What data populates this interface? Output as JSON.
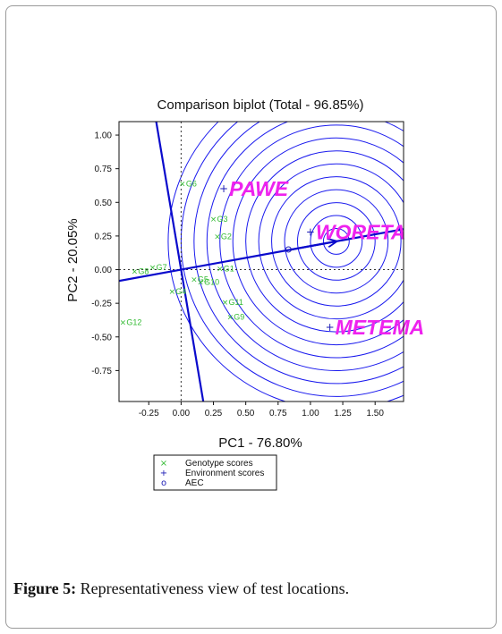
{
  "figure": {
    "caption_label": "Figure 5:",
    "caption_text": "Representativeness view of test locations."
  },
  "chart_data": {
    "type": "scatter",
    "title": "Comparison biplot (Total - 96.85%)",
    "xlabel": "PC1 - 76.80%",
    "ylabel": "PC2 - 20.05%",
    "xlim": [
      -0.48,
      1.72
    ],
    "ylim": [
      -0.98,
      1.1
    ],
    "xticks": [
      "-0.25",
      "0.00",
      "0.25",
      "0.50",
      "0.75",
      "1.00",
      "1.25",
      "1.50"
    ],
    "yticks": [
      "1.00",
      "0.75",
      "0.50",
      "0.25",
      "0.00",
      "-0.25",
      "-0.50",
      "-0.75"
    ],
    "colors": {
      "genotype": "#33bb33",
      "environment": "#1a1ab4",
      "axes_lines": "#0a0acc",
      "circles": "#1a1aee",
      "environment_label": "#ee22ee"
    },
    "genotypes": [
      {
        "label": "G1",
        "x": 0.3,
        "y": 0.01
      },
      {
        "label": "G2",
        "x": 0.28,
        "y": 0.25
      },
      {
        "label": "G3",
        "x": 0.25,
        "y": 0.38
      },
      {
        "label": "G4",
        "x": -0.07,
        "y": -0.16
      },
      {
        "label": "G5",
        "x": 0.1,
        "y": -0.07
      },
      {
        "label": "G6",
        "x": 0.01,
        "y": 0.64
      },
      {
        "label": "G7",
        "x": -0.22,
        "y": 0.02
      },
      {
        "label": "G8",
        "x": -0.36,
        "y": -0.01
      },
      {
        "label": "G9",
        "x": 0.38,
        "y": -0.35
      },
      {
        "label": "G10",
        "x": 0.15,
        "y": -0.09
      },
      {
        "label": "G11",
        "x": 0.34,
        "y": -0.24
      },
      {
        "label": "G12",
        "x": -0.45,
        "y": -0.39
      }
    ],
    "environments": [
      {
        "label": "PAWE",
        "x": 0.33,
        "y": 0.6
      },
      {
        "label": "WORETA",
        "x": 1.0,
        "y": 0.28
      },
      {
        "label": "METEMA",
        "x": 1.15,
        "y": -0.43
      }
    ],
    "aec_point": {
      "x": 0.83,
      "y": 0.15
    },
    "aec_arrow_end": {
      "x": 1.2,
      "y": 0.21
    },
    "circle_center": {
      "x": 1.2,
      "y": 0.21
    },
    "legend": {
      "items": [
        {
          "symbol": "×",
          "label": "Genotype scores"
        },
        {
          "symbol": "+",
          "label": "Environment scores"
        },
        {
          "symbol": "o",
          "label": "AEC"
        }
      ]
    }
  }
}
